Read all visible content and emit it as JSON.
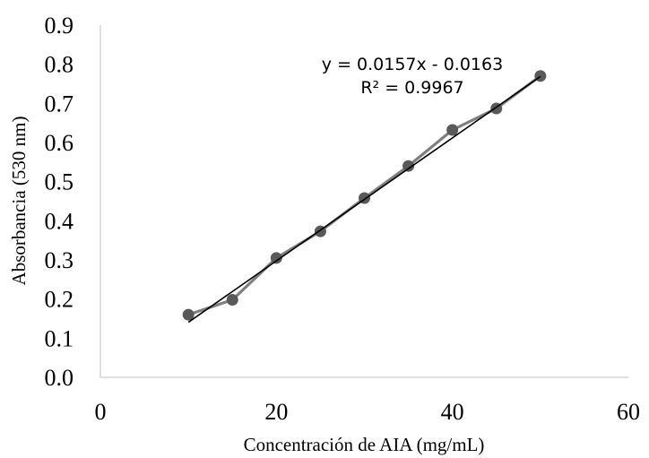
{
  "chart_data": {
    "type": "scatter",
    "title": "",
    "xlabel": "Concentración de AIA (mg/mL)",
    "ylabel": "Absorbancia (530 nm)",
    "xlim": [
      0,
      60
    ],
    "ylim": [
      0,
      0.9
    ],
    "x_ticks": [
      "0",
      "20",
      "40",
      "60"
    ],
    "y_ticks": [
      "0.0",
      "0.1",
      "0.2",
      "0.3",
      "0.4",
      "0.5",
      "0.6",
      "0.7",
      "0.8",
      "0.9"
    ],
    "grid": false,
    "legend": false,
    "series": [
      {
        "marker_color": "#595959",
        "line_color": "#808080",
        "x": [
          10,
          15,
          20,
          25,
          30,
          35,
          40,
          45,
          50
        ],
        "y": [
          0.16,
          0.198,
          0.305,
          0.373,
          0.458,
          0.54,
          0.632,
          0.687,
          0.77
        ]
      }
    ],
    "trendline": {
      "type": "linear",
      "slope": 0.0157,
      "intercept": -0.0163,
      "x_range": [
        10,
        50
      ],
      "color": "#000000",
      "equation": "y = 0.0157x - 0.0163",
      "r_squared": "R² = 0.9967"
    }
  }
}
